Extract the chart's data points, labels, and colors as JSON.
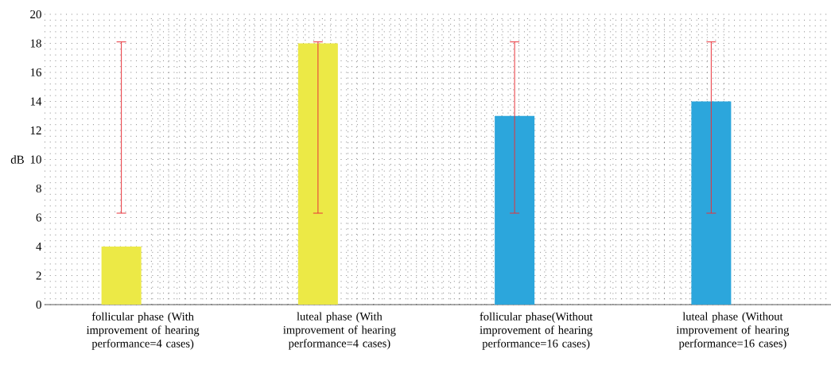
{
  "chart_data": {
    "type": "bar",
    "ylabel": "dB",
    "categories": [
      "follicular phase (With improvement of hearing performance=4 cases)",
      "luteal phase (With improvement of hearing performance=4 cases)",
      "follicular phase(Without improvement of hearing performance=16 cases)",
      "luteal phase (Without improvement of hearing performance=16 cases)"
    ],
    "values": [
      4,
      18,
      13,
      14
    ],
    "colors": [
      "#ece946",
      "#ece946",
      "#2ca6dc",
      "#2ca6dc"
    ],
    "errors": [
      [
        6.3,
        18.1
      ],
      [
        6.3,
        18.1
      ],
      [
        6.3,
        18.1
      ],
      [
        6.3,
        18.1
      ]
    ],
    "ylim": [
      0,
      20
    ],
    "yticks": [
      0,
      2,
      4,
      6,
      8,
      10,
      12,
      14,
      16,
      18,
      20
    ],
    "grid": true
  }
}
